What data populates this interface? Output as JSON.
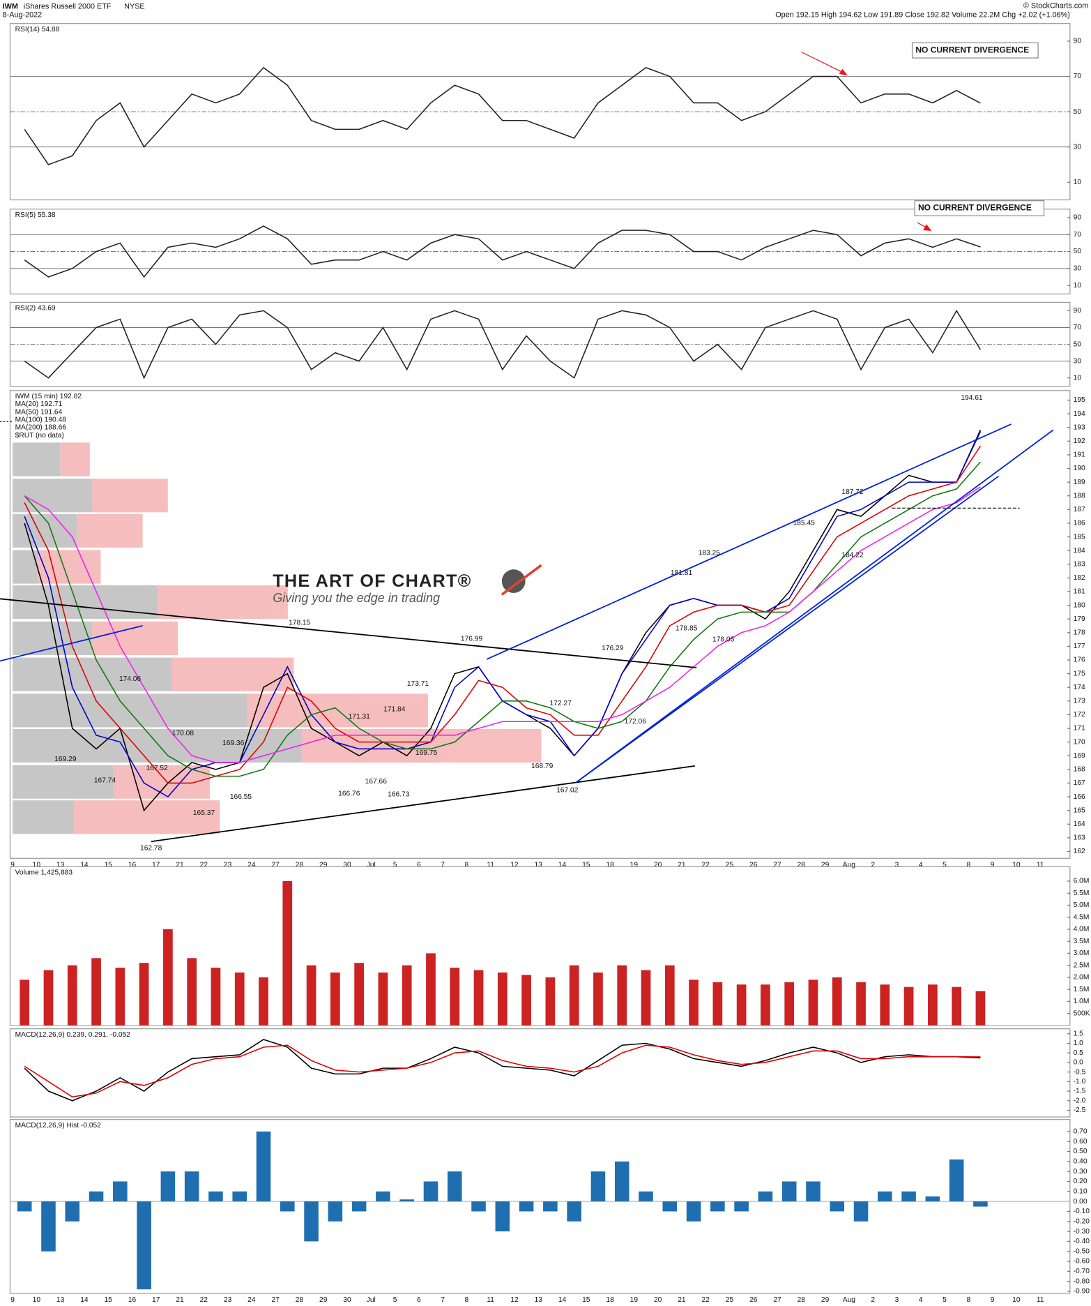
{
  "header": {
    "symbol": "IWM",
    "name": "iShares Russell 2000 ETF",
    "exchange": "NYSE",
    "date": "8-Aug-2022",
    "quote": "Open 192.15 High 194.62 Low 191.89 Close 192.82 Volume 22.2M Chg +2.02 (+1.06%)",
    "credit": "© StockCharts.com"
  },
  "chart_data": [
    {
      "type": "line",
      "title": "RSI(14) 54.88",
      "note": "NO CURRENT DIVERGENCE",
      "ylim": [
        0,
        100
      ],
      "yticks": [
        10,
        30,
        50,
        70,
        90
      ],
      "reference_lines": [
        30,
        50,
        70
      ],
      "series": [
        {
          "color": "#222222",
          "values": [
            40,
            20,
            25,
            45,
            55,
            30,
            45,
            60,
            55,
            60,
            75,
            65,
            45,
            40,
            40,
            45,
            40,
            55,
            65,
            60,
            45,
            45,
            40,
            35,
            55,
            65,
            75,
            70,
            55,
            55,
            45,
            50,
            60,
            70,
            70,
            55,
            60,
            60,
            55,
            62,
            54.88,
            null,
            null,
            null
          ]
        }
      ]
    },
    {
      "type": "line",
      "title": "RSI(5) 55.38",
      "note": "NO CURRENT DIVERGENCE",
      "ylim": [
        0,
        100
      ],
      "yticks": [
        10,
        30,
        50,
        70,
        90
      ],
      "reference_lines": [
        30,
        50,
        70
      ],
      "series": [
        {
          "color": "#222222",
          "values": [
            40,
            20,
            30,
            50,
            60,
            20,
            55,
            60,
            55,
            65,
            80,
            65,
            35,
            40,
            40,
            50,
            40,
            60,
            70,
            65,
            40,
            50,
            40,
            30,
            60,
            75,
            75,
            70,
            50,
            50,
            40,
            55,
            65,
            75,
            70,
            45,
            60,
            65,
            55,
            65,
            55.38,
            null,
            null,
            null
          ]
        }
      ]
    },
    {
      "type": "line",
      "title": "RSI(2) 43.69",
      "ylim": [
        0,
        100
      ],
      "yticks": [
        10,
        30,
        50,
        70,
        90
      ],
      "reference_lines": [
        30,
        50,
        70
      ],
      "series": [
        {
          "color": "#222222",
          "values": [
            30,
            10,
            40,
            70,
            80,
            10,
            70,
            80,
            50,
            85,
            90,
            70,
            20,
            40,
            30,
            70,
            20,
            80,
            90,
            80,
            20,
            60,
            30,
            10,
            80,
            90,
            85,
            70,
            30,
            50,
            20,
            70,
            80,
            90,
            80,
            20,
            70,
            80,
            40,
            90,
            43.69,
            null,
            null,
            null
          ]
        }
      ]
    },
    {
      "type": "line",
      "legend_note": "$RUT (no data)",
      "watermark": {
        "title": "THE ART OF CHART®",
        "tagline": "Giving you the edge in trading"
      },
      "categories": [
        "9",
        "10",
        "13",
        "14",
        "15",
        "16",
        "17",
        "21",
        "22",
        "23",
        "24",
        "27",
        "28",
        "29",
        "30",
        "Jul",
        "5",
        "6",
        "7",
        "8",
        "11",
        "12",
        "13",
        "14",
        "15",
        "18",
        "19",
        "20",
        "21",
        "22",
        "25",
        "26",
        "27",
        "28",
        "29",
        "Aug",
        "2",
        "3",
        "4",
        "5",
        "8",
        "9",
        "10",
        "11"
      ],
      "ylim": [
        161.5,
        195.7
      ],
      "yticks": [
        162,
        163,
        164,
        165,
        166,
        167,
        168,
        169,
        170,
        171,
        172,
        173,
        174,
        175,
        176,
        177,
        178,
        179,
        180,
        181,
        182,
        183,
        184,
        185,
        186,
        187,
        188,
        189,
        190,
        191,
        192,
        193,
        194,
        195
      ],
      "series": [
        {
          "name": "IWM (15 min) 192.82",
          "color": "#000000",
          "values": [
            186,
            180,
            171,
            169.5,
            171,
            165,
            167,
            168.5,
            168,
            168.5,
            174,
            175,
            171,
            170,
            169,
            170,
            169,
            171,
            175,
            175.5,
            173,
            172,
            171,
            169,
            171,
            175,
            178,
            180,
            180.5,
            180,
            180,
            179,
            181,
            184,
            187,
            186.5,
            188,
            189.5,
            189,
            189,
            192.82,
            null,
            null,
            null
          ]
        },
        {
          "name": "MA(20) 192.71",
          "color": "#0000cc",
          "values": [
            186.5,
            182,
            174,
            170.5,
            170,
            167,
            166,
            168,
            168.5,
            168.5,
            172,
            175.5,
            172,
            170,
            169.5,
            169.5,
            169.5,
            170,
            174,
            175.5,
            173,
            172,
            171.5,
            169,
            171,
            175,
            177.5,
            180,
            180.5,
            180,
            180,
            179.5,
            180.5,
            183.5,
            186.5,
            187,
            188,
            189,
            189,
            189,
            192.71,
            null,
            null,
            null
          ]
        },
        {
          "name": "MA(50) 191.64",
          "color": "#dd0000",
          "values": [
            187.5,
            184,
            177,
            173,
            171,
            169,
            167,
            167,
            167.5,
            168,
            170,
            174,
            173,
            171,
            170,
            170,
            170,
            170,
            172,
            174.5,
            174,
            172.5,
            172,
            170.5,
            170.5,
            173,
            175.5,
            178.5,
            179.5,
            180,
            180,
            179.5,
            180,
            182.5,
            185,
            186,
            187,
            188,
            188.5,
            189,
            191.64,
            null,
            null,
            null
          ]
        },
        {
          "name": "MA(100) 190.48",
          "color": "#117711",
          "values": [
            188,
            186,
            181,
            176,
            173,
            171,
            169,
            168,
            167.5,
            167.5,
            168,
            170.5,
            172,
            172.5,
            171,
            170,
            169.5,
            169.5,
            170,
            171.5,
            173,
            173,
            172.5,
            171.5,
            171,
            171.5,
            173,
            175.5,
            177.5,
            179,
            179.5,
            179.5,
            179.5,
            181,
            183,
            185,
            186,
            187,
            188,
            188.5,
            190.48,
            null,
            null,
            null
          ]
        },
        {
          "name": "MA(200) 188.66",
          "color": "#ee22ee",
          "values": [
            188,
            187,
            185,
            181,
            177,
            174,
            171,
            169,
            168.5,
            168.5,
            169,
            169.5,
            170,
            170.5,
            170.5,
            170.5,
            170.5,
            170.5,
            170.5,
            171,
            171.5,
            171.5,
            171.5,
            171.5,
            171.5,
            172,
            173,
            174,
            175.5,
            177,
            178,
            178.5,
            179.5,
            181,
            182.5,
            184,
            185,
            186,
            187,
            187.5,
            188.66,
            null,
            null,
            null
          ]
        }
      ],
      "annotations": [
        {
          "value": 162.78
        },
        {
          "value": 167.74
        },
        {
          "value": 169.29
        },
        {
          "value": 174.06
        },
        {
          "value": 167.52
        },
        {
          "value": 170.08
        },
        {
          "value": 165.37
        },
        {
          "value": 169.36
        },
        {
          "value": 166.55
        },
        {
          "value": 178.15
        },
        {
          "value": 171.31
        },
        {
          "value": 166.76
        },
        {
          "value": 167.66
        },
        {
          "value": 171.84
        },
        {
          "value": 166.73
        },
        {
          "value": 169.75
        },
        {
          "value": 173.71
        },
        {
          "value": 176.99
        },
        {
          "value": 168.79
        },
        {
          "value": 172.27
        },
        {
          "value": 167.02
        },
        {
          "value": 176.29
        },
        {
          "value": 172.06
        },
        {
          "value": 181.81
        },
        {
          "value": 183.25
        },
        {
          "value": 178.85
        },
        {
          "value": 178.05
        },
        {
          "value": 185.45
        },
        {
          "value": 184.22
        },
        {
          "value": 187.72
        },
        {
          "value": 194.61
        }
      ]
    },
    {
      "type": "bar",
      "title": "Volume 1,425,883",
      "ylim": [
        0,
        6600000
      ],
      "yticks": [
        {
          "value": 500000,
          "label": "500K"
        },
        {
          "value": 1000000,
          "label": "1.0M"
        },
        {
          "value": 1500000,
          "label": "1.5M"
        },
        {
          "value": 2000000,
          "label": "2.0M"
        },
        {
          "value": 2500000,
          "label": "2.5M"
        },
        {
          "value": 3000000,
          "label": "3.0M"
        },
        {
          "value": 3500000,
          "label": "3.5M"
        },
        {
          "value": 4000000,
          "label": "4.0M"
        },
        {
          "value": 4500000,
          "label": "4.5M"
        },
        {
          "value": 5000000,
          "label": "5.0M"
        },
        {
          "value": 5500000,
          "label": "5.5M"
        },
        {
          "value": 6000000,
          "label": "6.0M"
        }
      ],
      "series": [
        {
          "color": "#cc2222",
          "values": [
            1900000,
            2300000,
            2500000,
            2800000,
            2400000,
            2600000,
            4000000,
            2800000,
            2400000,
            2200000,
            2000000,
            6000000,
            2500000,
            2200000,
            2600000,
            2200000,
            2500000,
            3000000,
            2400000,
            2300000,
            2200000,
            2100000,
            2000000,
            2500000,
            2200000,
            2500000,
            2300000,
            2500000,
            1900000,
            1800000,
            1700000,
            1700000,
            1800000,
            1900000,
            2000000,
            1800000,
            1700000,
            1600000,
            1700000,
            1600000,
            1425883,
            null,
            null,
            null
          ]
        }
      ]
    },
    {
      "type": "line",
      "title": "MACD(12,26,9) 0.239, 0.291, -0.052",
      "ylim": [
        -2.85,
        1.76
      ],
      "yticks": [
        1.5,
        {
          "value": 1,
          "label": "1.0"
        },
        0.5,
        {
          "value": 0,
          "label": "0.0"
        },
        -0.5,
        {
          "value": -1,
          "label": "-1.0"
        },
        -1.5,
        {
          "value": -2,
          "label": "-2.0"
        },
        -2.5
      ],
      "series": [
        {
          "color": "#000000",
          "values": [
            -0.3,
            -1.5,
            -2.0,
            -1.5,
            -0.8,
            -1.5,
            -0.5,
            0.2,
            0.3,
            0.4,
            1.2,
            0.8,
            -0.3,
            -0.6,
            -0.6,
            -0.3,
            -0.3,
            0.2,
            0.8,
            0.5,
            -0.2,
            -0.3,
            -0.4,
            -0.7,
            0.1,
            0.9,
            1.0,
            0.7,
            0.2,
            0.0,
            -0.2,
            0.1,
            0.5,
            0.8,
            0.5,
            0.0,
            0.3,
            0.4,
            0.3,
            0.3,
            0.239,
            null,
            null,
            null
          ]
        },
        {
          "color": "#dd0000",
          "values": [
            -0.2,
            -1.0,
            -1.8,
            -1.6,
            -1.0,
            -1.2,
            -0.8,
            -0.1,
            0.2,
            0.3,
            0.8,
            0.9,
            0.1,
            -0.4,
            -0.5,
            -0.4,
            -0.3,
            0.0,
            0.5,
            0.6,
            0.1,
            -0.2,
            -0.3,
            -0.5,
            -0.2,
            0.5,
            0.9,
            0.8,
            0.4,
            0.1,
            -0.1,
            0.0,
            0.3,
            0.6,
            0.6,
            0.2,
            0.2,
            0.3,
            0.3,
            0.3,
            0.291,
            null,
            null,
            null
          ]
        }
      ]
    },
    {
      "type": "bar",
      "title": "MACD(12,26,9) Hist -0.052",
      "ylim": [
        -0.92,
        0.82
      ],
      "categories": [
        "9",
        "10",
        "13",
        "14",
        "15",
        "16",
        "17",
        "21",
        "22",
        "23",
        "24",
        "27",
        "28",
        "29",
        "30",
        "Jul",
        "5",
        "6",
        "7",
        "8",
        "11",
        "12",
        "13",
        "14",
        "15",
        "18",
        "19",
        "20",
        "21",
        "22",
        "25",
        "26",
        "27",
        "28",
        "29",
        "Aug",
        "2",
        "3",
        "4",
        "5",
        "8",
        "9",
        "10",
        "11"
      ],
      "yticks": [
        {
          "value": 0.7,
          "label": "0.70"
        },
        {
          "value": 0.6,
          "label": "0.60"
        },
        {
          "value": 0.5,
          "label": "0.50"
        },
        {
          "value": 0.4,
          "label": "0.40"
        },
        {
          "value": 0.3,
          "label": "0.30"
        },
        {
          "value": 0.2,
          "label": "0.20"
        },
        {
          "value": 0.1,
          "label": "0.10"
        },
        {
          "value": 0,
          "label": "0.00"
        },
        {
          "value": -0.1,
          "label": "-0.10"
        },
        {
          "value": -0.2,
          "label": "-0.20"
        },
        {
          "value": -0.3,
          "label": "-0.30"
        },
        {
          "value": -0.4,
          "label": "-0.40"
        },
        {
          "value": -0.5,
          "label": "-0.50"
        },
        {
          "value": -0.6,
          "label": "-0.60"
        },
        {
          "value": -0.7,
          "label": "-0.70"
        },
        {
          "value": -0.8,
          "label": "-0.80"
        },
        {
          "value": -0.9,
          "label": "-0.90"
        }
      ],
      "series": [
        {
          "color": "#1f6fb0",
          "values": [
            -0.1,
            -0.5,
            -0.2,
            0.1,
            0.2,
            -0.88,
            0.3,
            0.3,
            0.1,
            0.1,
            0.7,
            -0.1,
            -0.4,
            -0.2,
            -0.1,
            0.1,
            0.02,
            0.2,
            0.3,
            -0.1,
            -0.3,
            -0.1,
            -0.1,
            -0.2,
            0.3,
            0.4,
            0.1,
            -0.1,
            -0.2,
            -0.1,
            -0.1,
            0.1,
            0.2,
            0.2,
            -0.1,
            -0.2,
            0.1,
            0.1,
            0.05,
            0.42,
            -0.052,
            null,
            null,
            null
          ]
        }
      ]
    }
  ]
}
